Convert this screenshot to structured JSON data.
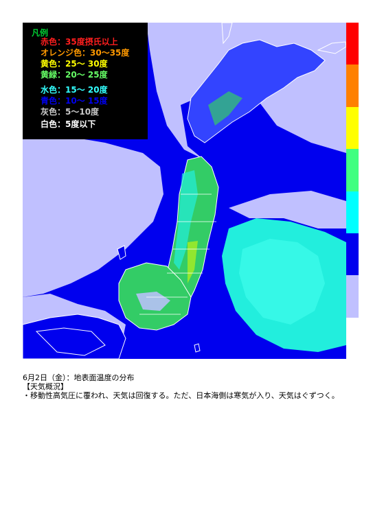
{
  "legend": {
    "title": "凡例",
    "items": [
      {
        "label": "赤色：35度摂氏以上",
        "color": "#ff1e1e"
      },
      {
        "label": "オレンジ色：30～35度",
        "color": "#ff9900"
      },
      {
        "label": "黄色：25～ 30度",
        "color": "#ffff00"
      },
      {
        "label": "黄緑：20～ 25度",
        "color": "#66ff66"
      },
      {
        "label": "水色：15～ 20度",
        "color": "#33ffff"
      },
      {
        "label": "青色：10～ 15度",
        "color": "#0000ee"
      },
      {
        "label": "灰色：5～10度",
        "color": "#c8c8c8"
      },
      {
        "label": "白色：5度以下",
        "color": "#ffffff"
      }
    ]
  },
  "color_bar": [
    {
      "color": "#ff0000"
    },
    {
      "color": "#ff8000"
    },
    {
      "color": "#ffff00"
    },
    {
      "color": "#40ff80"
    },
    {
      "color": "#00ffff"
    },
    {
      "color": "#0000ee"
    },
    {
      "color": "#c0c0ff"
    }
  ],
  "colors": {
    "ocean_blue": "#0000ee",
    "cloud_lavender": "#c0c0ff",
    "cyan_sea": "#22eedd",
    "land_green": "#33cc66",
    "coast_outline": "#ffffff"
  },
  "caption": {
    "title": "6月2日（金）：地表面温度の分布",
    "section": "【天気概況】",
    "text": "・移動性高気圧に覆われ、天気は回復する。ただ、日本海側は寒気が入り、天気はぐずつく。"
  }
}
